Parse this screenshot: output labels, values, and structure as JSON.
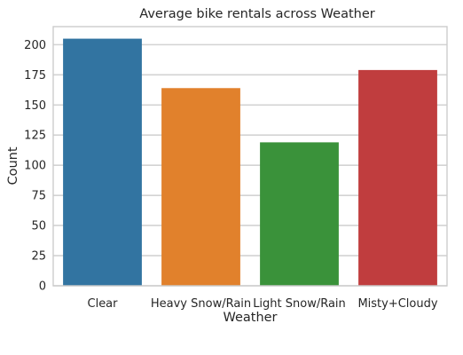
{
  "chart_data": {
    "type": "bar",
    "title": "Average bike rentals across Weather",
    "xlabel": "Weather",
    "ylabel": "Count",
    "categories": [
      "Clear",
      "Heavy Snow/Rain",
      "Light Snow/Rain",
      "Misty+Cloudy"
    ],
    "values": [
      205,
      164,
      119,
      179
    ],
    "colors": [
      "#3274a1",
      "#e1812c",
      "#3a923a",
      "#c03d3e"
    ],
    "ylim": [
      0,
      215
    ],
    "yticks": [
      0,
      25,
      50,
      75,
      100,
      125,
      150,
      175,
      200
    ],
    "grid": true,
    "legend": "none"
  }
}
